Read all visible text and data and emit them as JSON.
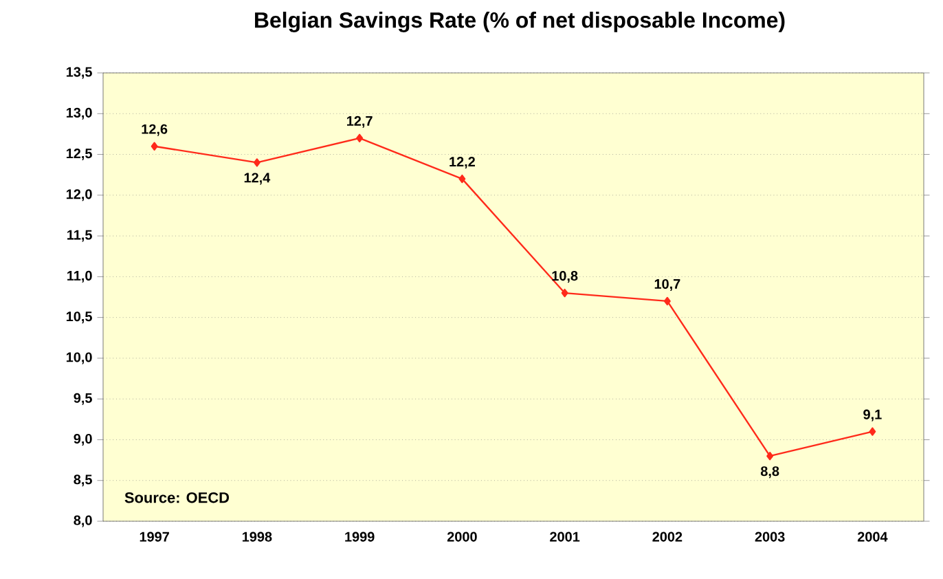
{
  "chart_data": {
    "type": "line",
    "title": "Belgian Savings Rate  (% of net disposable Income)",
    "categories": [
      "1997",
      "1998",
      "1999",
      "2000",
      "2001",
      "2002",
      "2003",
      "2004"
    ],
    "values": [
      12.6,
      12.4,
      12.7,
      12.2,
      10.8,
      10.7,
      8.8,
      9.1
    ],
    "value_labels": [
      "12,6",
      "12,4",
      "12,7",
      "12,2",
      "10,8",
      "10,7",
      "8,8",
      "9,1"
    ],
    "color": "#ff2a1a",
    "marker": "diamond",
    "grid": "y",
    "ylim": [
      8,
      13.5
    ],
    "yticks": [
      {
        "value": 8,
        "label": "8,0"
      },
      {
        "value": 8.5,
        "label": "8,5"
      },
      {
        "value": 9,
        "label": "9,0"
      },
      {
        "value": 9.5,
        "label": "9,5"
      },
      {
        "value": 10,
        "label": "10,0"
      },
      {
        "value": 10.5,
        "label": "10,5"
      },
      {
        "value": 11,
        "label": "11,0"
      },
      {
        "value": 11.5,
        "label": "11,5"
      },
      {
        "value": 12,
        "label": "12,0"
      },
      {
        "value": 12.5,
        "label": "12,5"
      },
      {
        "value": 13,
        "label": "13,0"
      },
      {
        "value": 13.5,
        "label": "13,5"
      }
    ],
    "annotations": [
      "Source: OECD"
    ]
  }
}
